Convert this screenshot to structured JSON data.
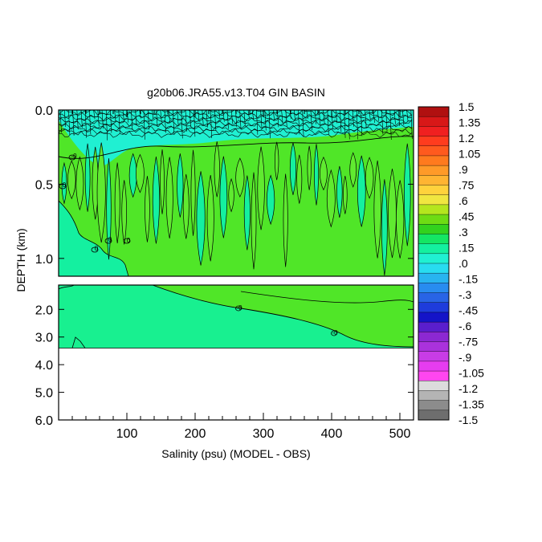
{
  "chart_data": {
    "type": "heatmap",
    "title": "g20b06.JRA55.v13.T04 GIN BASIN",
    "xlabel": "Salinity (psu) (MODEL - OBS)",
    "ylabel": "DEPTH (km)",
    "xlim": [
      0,
      520
    ],
    "x_ticks": [
      100,
      200,
      300,
      400,
      500
    ],
    "x_tick_labels": [
      "100",
      "200",
      "300",
      "400",
      "500"
    ],
    "upper_panel": {
      "ylim": [
        0.0,
        1.12
      ],
      "y_ticks": [
        0.0,
        0.5,
        1.0
      ],
      "y_tick_labels": [
        "0.0",
        "0.5",
        "1.0"
      ],
      "contour_labels": [
        "0",
        "0",
        "0",
        "-0",
        "0"
      ]
    },
    "lower_panel": {
      "ylim": [
        1.12,
        6.0
      ],
      "y_ticks": [
        2.0,
        3.0,
        4.0,
        5.0,
        6.0
      ],
      "y_tick_labels": [
        "2.0",
        "3.0",
        "4.0",
        "5.0",
        "6.0"
      ],
      "data_bottom_depth": 3.4,
      "contour_labels": [
        "-0",
        "-0"
      ]
    },
    "colorbar": {
      "levels": [
        1.5,
        1.35,
        1.2,
        1.05,
        0.9,
        0.75,
        0.6,
        0.45,
        0.3,
        0.15,
        0.0,
        -0.15,
        -0.3,
        -0.45,
        -0.6,
        -0.75,
        -0.9,
        -1.05,
        -1.2,
        -1.35,
        -1.5
      ],
      "labels": [
        "1.5",
        "1.35",
        "1.2",
        "1.05",
        ".9",
        ".75",
        ".6",
        ".45",
        ".3",
        ".15",
        ".0",
        "-.15",
        "-.3",
        "-.45",
        "-.6",
        "-.75",
        "-.9",
        "-1.05",
        "-1.2",
        "-1.35",
        "-1.5"
      ],
      "colors": [
        "#b01010",
        "#d81818",
        "#f02020",
        "#ff3c1e",
        "#ff5a1e",
        "#ff7a1e",
        "#ff9a28",
        "#ffb432",
        "#ffd23c",
        "#f0e640",
        "#b4e61e",
        "#6edc14",
        "#32d21e",
        "#14e664",
        "#14f0a0",
        "#20f0d2",
        "#28dcf0",
        "#28b4f0",
        "#288cf0",
        "#2864e6",
        "#1e3cdc",
        "#1414c8",
        "#5a1ecd",
        "#8c28d2",
        "#aa32dc",
        "#c83ce6",
        "#e63cf0",
        "#ff46f0",
        "#dcdcdc",
        "#b4b4b4",
        "#8c8c8c",
        "#6e6e6e"
      ]
    },
    "colors": {
      "upper_fill": "#50e628",
      "near_zero_fill": "#14f0a0",
      "surface_fill": "#20f0d2",
      "lower_fill": "#18f090"
    }
  }
}
